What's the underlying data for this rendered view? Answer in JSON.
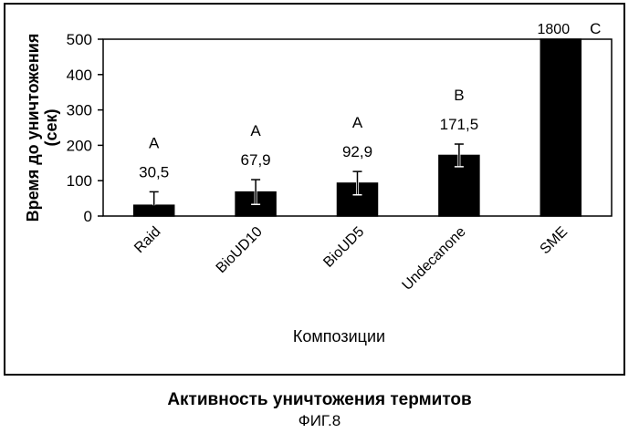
{
  "chart_data": {
    "type": "bar",
    "categories": [
      "Raid",
      "BioUD10",
      "BioUD5",
      "Undecanone",
      "SME"
    ],
    "values": [
      30.5,
      67.9,
      92.9,
      171.5,
      1800
    ],
    "error_plus": [
      38,
      35,
      33,
      32,
      0
    ],
    "error_minus": [
      0,
      35,
      33,
      32,
      0
    ],
    "value_labels": [
      "30,5",
      "67,9",
      "92,9",
      "171,5",
      "1800"
    ],
    "group_letters": [
      "A",
      "A",
      "A",
      "B",
      "C"
    ],
    "ylabel": "Время до уничтожения (сек)",
    "ylabel_lines": [
      "Время до уничтожения",
      "(сек)"
    ],
    "xlabel": "Композиции",
    "ylim": [
      0,
      500
    ],
    "yticks": [
      0,
      100,
      200,
      300,
      400,
      500
    ],
    "grid": false,
    "bar_color": "#000000"
  },
  "caption": "Активность уничтожения термитов",
  "figure_label": "ФИГ.8"
}
